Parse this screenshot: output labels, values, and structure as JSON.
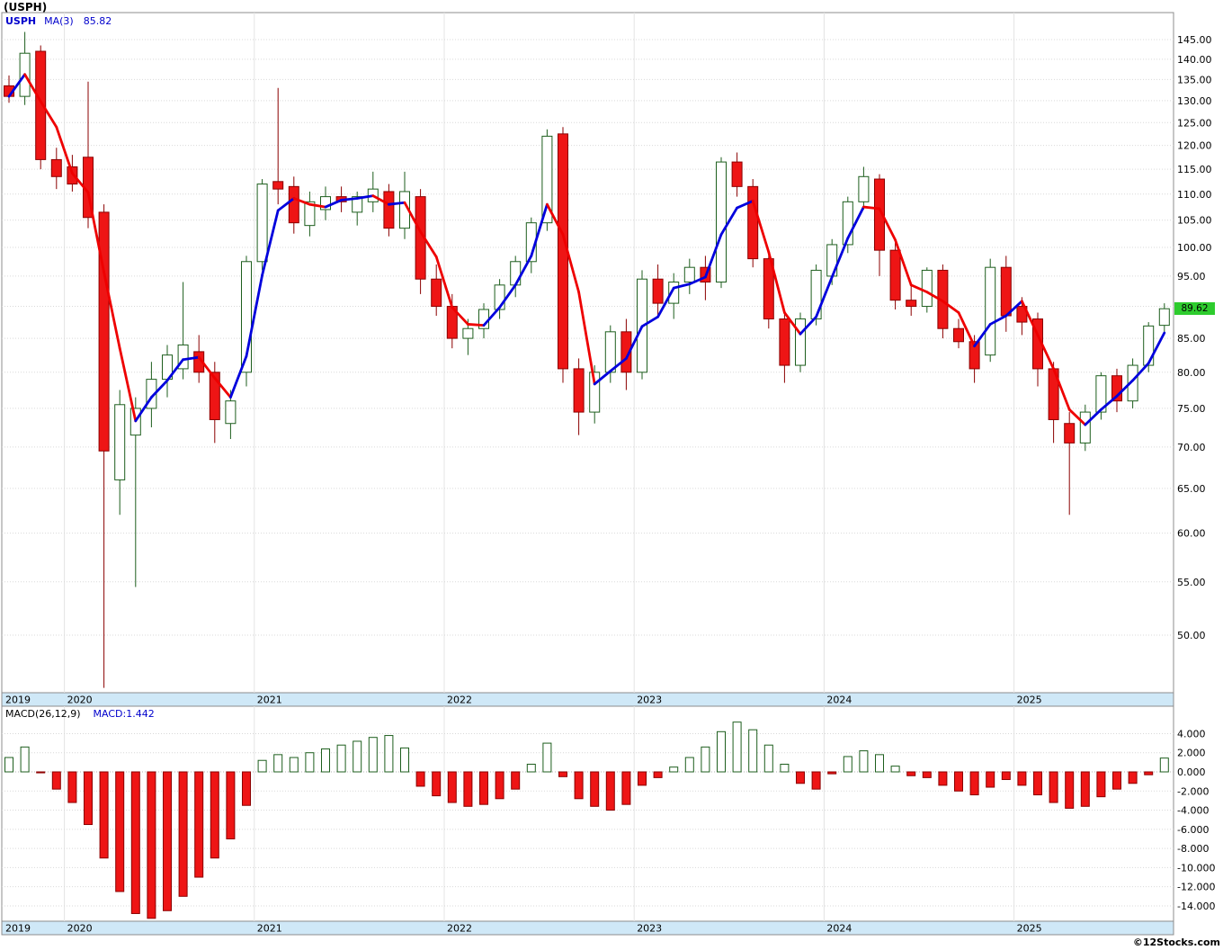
{
  "page": {
    "title": "(USPH)",
    "watermark": "©12Stocks.com"
  },
  "price_panel": {
    "legend_symbol": "USPH",
    "legend_ma_label": "MA(3)",
    "legend_ma_value": "85.82",
    "last_price_label": "89.62"
  },
  "macd_panel": {
    "legend_label": "MACD(26,12,9)",
    "legend_value": "MACD:1.442"
  },
  "colors": {
    "panel_border": "#8c8c8c",
    "grid": "#d9d9d9",
    "band_bg": "#cfe8f7",
    "up_stroke": "#1d5e1d",
    "down_fill": "#ee1515",
    "down_stroke": "#8b0000",
    "ma_up": "#0000dd",
    "ma_down": "#ee0000",
    "badge_bg": "#2ecc2e",
    "legend_blue": "#0000cc"
  },
  "chart_data": [
    {
      "type": "candlestick",
      "title": "USPH monthly candlesticks with MA(3)",
      "symbol": "USPH",
      "yscale": "log",
      "ylim": [
        45,
        147
      ],
      "y_ticks": [
        145,
        140,
        135,
        130,
        125,
        120,
        115,
        110,
        105,
        100,
        95,
        90,
        85,
        80,
        75,
        70,
        65,
        60,
        55,
        50
      ],
      "year_labels": [
        "2019",
        "2020",
        "2021",
        "2022",
        "2023",
        "2024",
        "2025"
      ],
      "ma_period": 3,
      "ma_last": 85.82,
      "last_close": 89.62,
      "x_months": [
        "2019-09",
        "2019-10",
        "2019-11",
        "2019-12",
        "2020-01",
        "2020-02",
        "2020-03",
        "2020-04",
        "2020-05",
        "2020-06",
        "2020-07",
        "2020-08",
        "2020-09",
        "2020-10",
        "2020-11",
        "2020-12",
        "2021-01",
        "2021-02",
        "2021-03",
        "2021-04",
        "2021-05",
        "2021-06",
        "2021-07",
        "2021-08",
        "2021-09",
        "2021-10",
        "2021-11",
        "2021-12",
        "2022-01",
        "2022-02",
        "2022-03",
        "2022-04",
        "2022-05",
        "2022-06",
        "2022-07",
        "2022-08",
        "2022-09",
        "2022-10",
        "2022-11",
        "2022-12",
        "2023-01",
        "2023-02",
        "2023-03",
        "2023-04",
        "2023-05",
        "2023-06",
        "2023-07",
        "2023-08",
        "2023-09",
        "2023-10",
        "2023-11",
        "2023-12",
        "2024-01",
        "2024-02",
        "2024-03",
        "2024-04",
        "2024-05",
        "2024-06",
        "2024-07",
        "2024-08",
        "2024-09",
        "2024-10",
        "2024-11",
        "2024-12",
        "2025-01",
        "2025-02",
        "2025-03",
        "2025-04",
        "2025-05",
        "2025-06",
        "2025-07",
        "2025-08",
        "2025-09",
        "2025-10"
      ],
      "open": [
        133.5,
        131.0,
        142.0,
        117.0,
        115.5,
        117.5,
        106.5,
        66.0,
        71.5,
        75.0,
        79.0,
        80.5,
        83.0,
        80.0,
        73.0,
        80.0,
        97.5,
        112.5,
        111.5,
        104.0,
        107.0,
        109.5,
        106.5,
        108.5,
        110.5,
        103.5,
        109.5,
        94.5,
        90.0,
        85.0,
        86.5,
        89.5,
        93.5,
        97.5,
        104.5,
        122.5,
        80.5,
        74.5,
        80.0,
        86.0,
        80.0,
        94.5,
        90.5,
        94.0,
        96.5,
        94.0,
        116.5,
        111.5,
        98.0,
        88.0,
        81.0,
        88.0,
        95.0,
        100.5,
        108.5,
        113.0,
        99.5,
        91.0,
        90.0,
        96.0,
        86.5,
        84.5,
        82.5,
        96.5,
        90.0,
        88.0,
        80.5,
        73.0,
        70.5,
        74.5,
        79.5,
        76.0,
        81.0,
        87.0
      ],
      "high": [
        136.0,
        147.0,
        143.5,
        119.5,
        118.0,
        134.5,
        108.0,
        77.5,
        76.5,
        81.5,
        84.0,
        94.0,
        85.5,
        81.5,
        77.5,
        98.5,
        113.0,
        133.0,
        113.5,
        110.5,
        111.5,
        111.5,
        110.5,
        114.5,
        112.0,
        114.5,
        111.0,
        97.0,
        92.0,
        88.0,
        90.5,
        94.5,
        98.5,
        105.5,
        123.5,
        124.0,
        82.0,
        81.0,
        87.0,
        88.0,
        96.0,
        97.0,
        95.5,
        98.0,
        98.5,
        117.5,
        118.5,
        113.0,
        99.5,
        89.0,
        89.0,
        97.0,
        101.5,
        109.5,
        115.5,
        114.0,
        101.0,
        93.5,
        96.5,
        97.0,
        88.0,
        85.5,
        98.0,
        98.5,
        91.5,
        89.0,
        81.5,
        74.5,
        75.5,
        80.0,
        80.5,
        82.0,
        87.5,
        90.5
      ],
      "low": [
        129.5,
        129.0,
        115.0,
        111.0,
        110.5,
        103.5,
        45.5,
        62.0,
        54.5,
        72.5,
        76.5,
        79.0,
        78.5,
        70.5,
        71.0,
        78.0,
        96.0,
        108.0,
        102.5,
        102.0,
        105.0,
        106.5,
        104.0,
        106.5,
        102.0,
        101.5,
        92.0,
        88.5,
        83.5,
        82.5,
        85.0,
        88.0,
        91.5,
        95.5,
        103.0,
        78.5,
        71.5,
        73.0,
        78.5,
        77.5,
        79.0,
        88.5,
        88.0,
        92.0,
        91.0,
        93.0,
        109.5,
        96.5,
        86.5,
        78.5,
        80.0,
        87.0,
        93.5,
        99.0,
        107.0,
        95.0,
        89.5,
        88.5,
        89.0,
        85.0,
        83.5,
        78.5,
        81.5,
        86.0,
        85.5,
        78.0,
        70.5,
        62.0,
        69.5,
        73.5,
        74.5,
        75.0,
        80.0,
        86.0
      ],
      "close": [
        131.0,
        141.5,
        117.0,
        113.5,
        112.0,
        105.5,
        69.5,
        75.5,
        75.0,
        79.0,
        82.5,
        84.0,
        80.0,
        73.5,
        76.0,
        97.5,
        112.0,
        111.0,
        104.5,
        108.5,
        109.5,
        108.5,
        109.5,
        111.0,
        103.5,
        110.5,
        94.5,
        90.0,
        85.0,
        86.5,
        89.5,
        93.5,
        97.5,
        104.5,
        122.0,
        80.5,
        74.5,
        80.0,
        86.0,
        80.0,
        94.5,
        90.5,
        94.0,
        96.5,
        94.0,
        116.5,
        111.5,
        98.0,
        88.0,
        81.0,
        88.0,
        96.0,
        100.5,
        108.5,
        113.5,
        99.5,
        91.0,
        90.0,
        96.0,
        86.5,
        84.5,
        80.5,
        96.5,
        88.5,
        87.5,
        80.5,
        73.5,
        70.5,
        74.5,
        79.5,
        76.0,
        81.0,
        86.9,
        89.62
      ]
    },
    {
      "type": "bar",
      "title": "MACD(26,12,9)",
      "ylim": [
        -15.5,
        5.5
      ],
      "y_ticks": [
        4,
        2,
        0,
        -2,
        -4,
        -6,
        -8,
        -10,
        -12,
        -14
      ],
      "last_value": 1.442,
      "x_months": [
        "2019-09",
        "2019-10",
        "2019-11",
        "2019-12",
        "2020-01",
        "2020-02",
        "2020-03",
        "2020-04",
        "2020-05",
        "2020-06",
        "2020-07",
        "2020-08",
        "2020-09",
        "2020-10",
        "2020-11",
        "2020-12",
        "2021-01",
        "2021-02",
        "2021-03",
        "2021-04",
        "2021-05",
        "2021-06",
        "2021-07",
        "2021-08",
        "2021-09",
        "2021-10",
        "2021-11",
        "2021-12",
        "2022-01",
        "2022-02",
        "2022-03",
        "2022-04",
        "2022-05",
        "2022-06",
        "2022-07",
        "2022-08",
        "2022-09",
        "2022-10",
        "2022-11",
        "2022-12",
        "2023-01",
        "2023-02",
        "2023-03",
        "2023-04",
        "2023-05",
        "2023-06",
        "2023-07",
        "2023-08",
        "2023-09",
        "2023-10",
        "2023-11",
        "2023-12",
        "2024-01",
        "2024-02",
        "2024-03",
        "2024-04",
        "2024-05",
        "2024-06",
        "2024-07",
        "2024-08",
        "2024-09",
        "2024-10",
        "2024-11",
        "2024-12",
        "2025-01",
        "2025-02",
        "2025-03",
        "2025-04",
        "2025-05",
        "2025-06",
        "2025-07",
        "2025-08",
        "2025-09",
        "2025-10"
      ],
      "values": [
        1.5,
        2.6,
        -0.1,
        -1.8,
        -3.2,
        -5.5,
        -9.0,
        -12.5,
        -14.8,
        -15.3,
        -14.5,
        -13.0,
        -11.0,
        -9.0,
        -7.0,
        -3.5,
        1.2,
        1.8,
        1.5,
        2.0,
        2.4,
        2.8,
        3.2,
        3.6,
        3.8,
        2.5,
        -1.5,
        -2.5,
        -3.2,
        -3.6,
        -3.4,
        -2.8,
        -1.8,
        0.8,
        3.0,
        -0.5,
        -2.8,
        -3.6,
        -4.0,
        -3.4,
        -1.4,
        -0.6,
        0.5,
        1.5,
        2.6,
        4.2,
        5.2,
        4.4,
        2.8,
        0.8,
        -1.2,
        -1.8,
        -0.2,
        1.6,
        2.2,
        1.8,
        0.6,
        -0.4,
        -0.6,
        -1.4,
        -2.0,
        -2.4,
        -1.6,
        -0.8,
        -1.4,
        -2.4,
        -3.2,
        -3.8,
        -3.6,
        -2.6,
        -1.8,
        -1.2,
        -0.3,
        1.442
      ]
    }
  ]
}
